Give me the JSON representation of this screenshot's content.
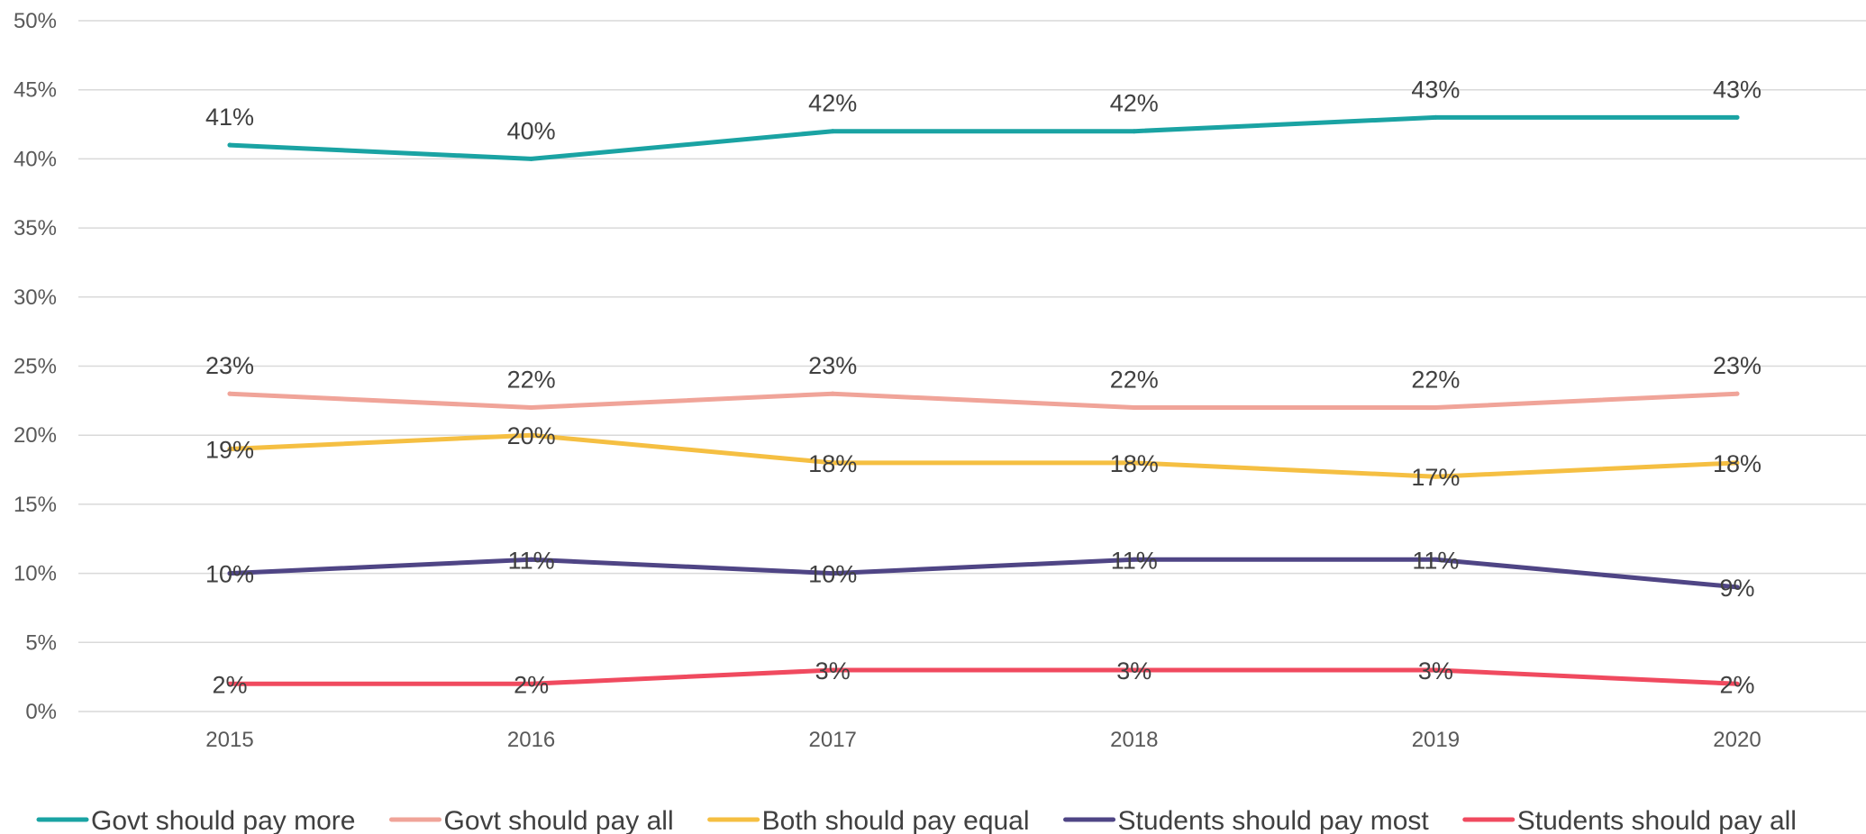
{
  "chart_data": {
    "type": "line",
    "title": "",
    "xlabel": "",
    "ylabel": "",
    "categories": [
      "2015",
      "2016",
      "2017",
      "2018",
      "2019",
      "2020"
    ],
    "y_ticks": [
      "0%",
      "5%",
      "10%",
      "15%",
      "20%",
      "25%",
      "30%",
      "35%",
      "40%",
      "45%",
      "50%"
    ],
    "ylim": [
      0,
      50
    ],
    "grid": true,
    "legend_position": "bottom",
    "series": [
      {
        "name": "Govt should pay more",
        "color": "#1aa3a3",
        "values": [
          41,
          40,
          42,
          42,
          43,
          43
        ],
        "labels": [
          "41%",
          "40%",
          "42%",
          "42%",
          "43%",
          "43%"
        ]
      },
      {
        "name": "Govt should pay all",
        "color": "#f0a499",
        "values": [
          23,
          22,
          23,
          22,
          22,
          23
        ],
        "labels": [
          "23%",
          "22%",
          "23%",
          "22%",
          "22%",
          "23%"
        ]
      },
      {
        "name": "Both should pay equal",
        "color": "#f5bf42",
        "values": [
          19,
          20,
          18,
          18,
          17,
          18
        ],
        "labels": [
          "19%",
          "20%",
          "18%",
          "18%",
          "17%",
          "18%"
        ]
      },
      {
        "name": "Students should pay most",
        "color": "#4f4585",
        "values": [
          10,
          11,
          10,
          11,
          11,
          9
        ],
        "labels": [
          "10%",
          "11%",
          "10%",
          "11%",
          "11%",
          "9%"
        ]
      },
      {
        "name": "Students should pay all",
        "color": "#f04a5f",
        "values": [
          2,
          2,
          3,
          3,
          3,
          2
        ],
        "labels": [
          "2%",
          "2%",
          "3%",
          "3%",
          "3%",
          "2%"
        ]
      }
    ]
  }
}
